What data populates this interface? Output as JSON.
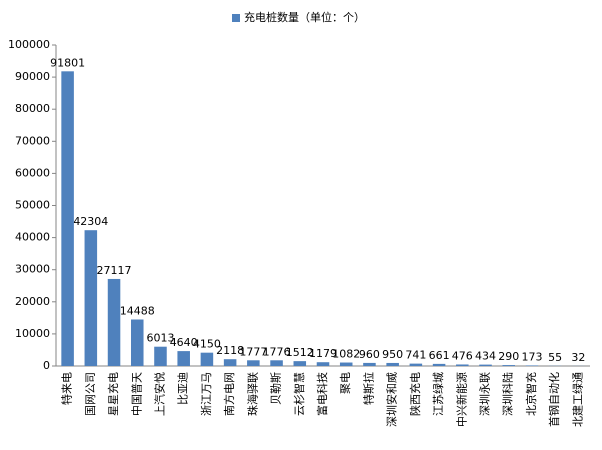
{
  "chart_data": {
    "type": "bar",
    "legend": "充电桩数量（单位：个）",
    "color": "#4f81bd",
    "categories": [
      "特来电",
      "国网公司",
      "星星充电",
      "中国普天",
      "上汽安悦",
      "比亚迪",
      "浙江万马",
      "南方电网",
      "珠海驿联",
      "贝勒斯",
      "云杉智慧",
      "富电科技",
      "聚电",
      "特斯拉",
      "深圳安和威",
      "陕西充电",
      "江苏绿城",
      "中兴新能源",
      "深圳永联",
      "深圳科陆",
      "北京智充",
      "首钢自动化",
      "北建工绿通"
    ],
    "values": [
      91801,
      42304,
      27117,
      14488,
      6013,
      4640,
      4150,
      2118,
      1777,
      1776,
      1512,
      1179,
      1082,
      960,
      950,
      741,
      661,
      476,
      434,
      290,
      173,
      55,
      32
    ],
    "ylim": [
      0,
      100000
    ],
    "yticks": [
      0,
      10000,
      20000,
      30000,
      40000,
      50000,
      60000,
      70000,
      80000,
      90000,
      100000
    ],
    "grid": false
  }
}
